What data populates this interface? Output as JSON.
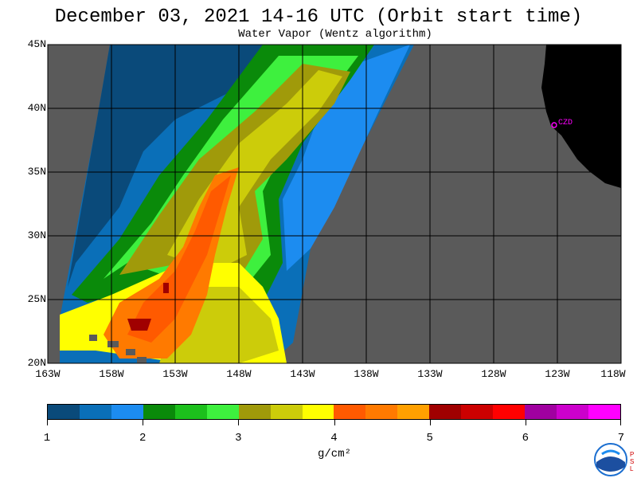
{
  "title": "December 03, 2021  14-16 UTC  (Orbit start time)",
  "subtitle": "Water Vapor (Wentz algorithm)",
  "latitude_labels": [
    "45N",
    "40N",
    "35N",
    "30N",
    "25N",
    "20N"
  ],
  "longitude_labels": [
    "163W",
    "158W",
    "153W",
    "148W",
    "143W",
    "138W",
    "133W",
    "128W",
    "123W",
    "118W"
  ],
  "station_label": "CZD",
  "colorbar": {
    "labels": [
      "1",
      "2",
      "3",
      "4",
      "5",
      "6",
      "7"
    ],
    "units": "g/cm²",
    "colors": [
      "#0a4a7a",
      "#0a6fb8",
      "#1c8cf0",
      "#0a8a0a",
      "#1cc01c",
      "#3ef03e",
      "#a09a0a",
      "#cccc0a",
      "#ffff00",
      "#ff5a00",
      "#ff7a00",
      "#ffa000",
      "#a00000",
      "#cc0000",
      "#ff0000",
      "#a000a0",
      "#cc00cc",
      "#ff00ff"
    ]
  },
  "map_colors": {
    "no_data": "#5a5a5a",
    "land": "#000000",
    "station": "#ff00ff",
    "grid": "#000000"
  },
  "logos": [
    "NOAA",
    "PSL"
  ]
}
